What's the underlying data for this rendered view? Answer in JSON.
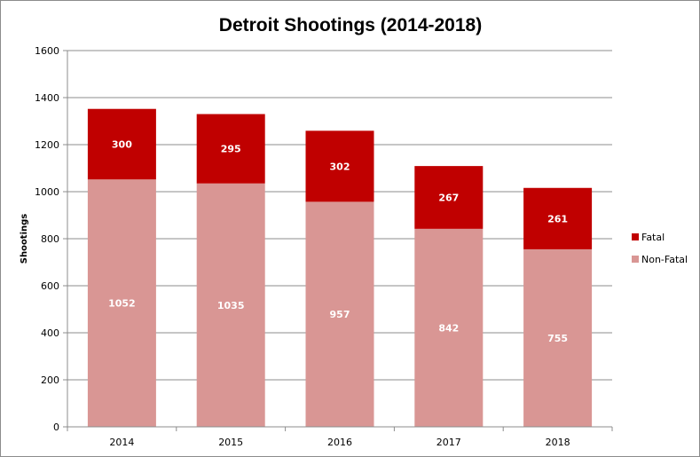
{
  "chart_data": {
    "type": "bar",
    "stacked": true,
    "title": "Detroit Shootings (2014-2018)",
    "xlabel": "",
    "ylabel": "Shootings",
    "categories": [
      "2014",
      "2015",
      "2016",
      "2017",
      "2018"
    ],
    "ylim": [
      0,
      1600
    ],
    "yticks": [
      0,
      200,
      400,
      600,
      800,
      1000,
      1200,
      1400,
      1600
    ],
    "grid": true,
    "legend_position": "right",
    "series": [
      {
        "name": "Non-Fatal",
        "color": "#d99694",
        "values": [
          1052,
          1035,
          957,
          842,
          755
        ]
      },
      {
        "name": "Fatal",
        "color": "#c00000",
        "values": [
          300,
          295,
          302,
          267,
          261
        ]
      }
    ]
  }
}
